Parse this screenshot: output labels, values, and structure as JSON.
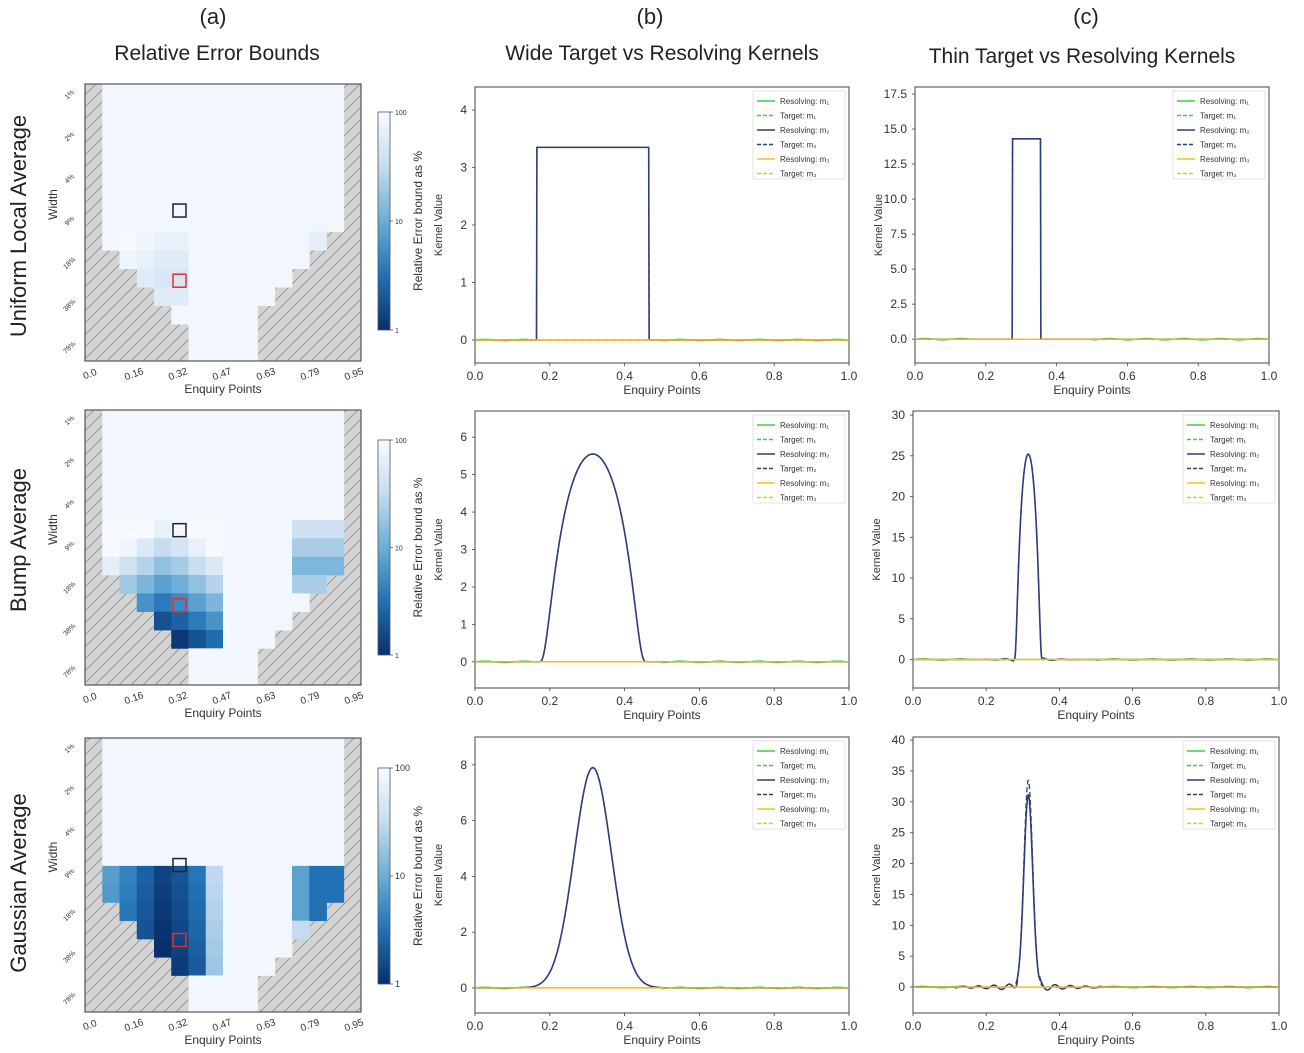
{
  "figure": {
    "column_letters": [
      "(a)",
      "(b)",
      "(c)"
    ],
    "column_titles": [
      "Relative Error Bounds",
      "Wide Target vs Resolving Kernels",
      "Thin Target vs Resolving Kernels"
    ],
    "row_titles": [
      "Uniform Local Average",
      "Bump Average",
      "Gaussian Average"
    ],
    "heatmap": {
      "xlabel": "Enquiry Points",
      "ylabel": "Width",
      "x_ticks": [
        "0.0",
        "0.16",
        "0.32",
        "0.47",
        "0.63",
        "0.79",
        "0.95"
      ],
      "y_ticks": [
        "1%",
        "2%",
        "4%",
        "9%",
        "18%",
        "38%",
        "78%"
      ],
      "colorbar_label": "Relative Error bound as %",
      "colorbar_ticks": [
        "100",
        "10",
        "1"
      ],
      "colors": {
        "hatch_bg": "#d4d4d4",
        "hatch_line": "#9a9a9a",
        "low": "#0b2f6b",
        "high": "#f5f8fd",
        "black_marker": "#222222",
        "red_marker": "#e03030"
      }
    },
    "line_axis": {
      "xlabel": "Enquiry Points",
      "ylabel": "Kernel Value",
      "legend": [
        "Resolving: m₁",
        "Target: m₁",
        "Resolving: m₂",
        "Target: m₂",
        "Resolving: m₃",
        "Target: m₃"
      ],
      "colors": {
        "m1": "#44cc44",
        "m2": "#2e3e78",
        "m3": "#f2c218"
      }
    }
  },
  "chart_data": [
    {
      "type": "heatmap",
      "panel": "a-1",
      "row": "Uniform Local Average",
      "title": "Relative Error Bounds",
      "xlabel": "Enquiry Points",
      "ylabel": "Width",
      "colorbar": {
        "label": "Relative Error bound as %",
        "ticks": [
          100,
          10,
          1
        ],
        "scale": "log"
      },
      "relative_error_band_max_percent": 20
    },
    {
      "type": "heatmap",
      "panel": "a-2",
      "row": "Bump Average",
      "xlabel": "Enquiry Points",
      "ylabel": "Width",
      "colorbar": {
        "label": "Relative Error bound as %",
        "ticks": [
          100,
          10,
          1
        ],
        "scale": "log"
      },
      "relative_error_band_min_percent": 1
    },
    {
      "type": "heatmap",
      "panel": "a-3",
      "row": "Gaussian Average",
      "xlabel": "Enquiry Points",
      "ylabel": "Width",
      "colorbar": {
        "label": "Relative Error bound as %",
        "ticks": [
          100,
          10,
          1
        ],
        "scale": "log"
      },
      "relative_error_band_min_percent": 1
    },
    {
      "type": "line",
      "panel": "b-1",
      "title": "Wide Target vs Resolving Kernels",
      "xlabel": "Enquiry Points",
      "ylabel": "Kernel Value",
      "xlim": [
        0,
        1
      ],
      "ylim": [
        -0.4,
        4.4
      ],
      "y_ticks": [
        0,
        1,
        2,
        3,
        4
      ],
      "target": {
        "shape": "box",
        "left": 0.165,
        "right": 0.465,
        "height": 3.35
      },
      "resolving_overshoot_peak": 3.65
    },
    {
      "type": "line",
      "panel": "c-1",
      "title": "Thin Target vs Resolving Kernels",
      "xlabel": "Enquiry Points",
      "ylabel": "Kernel Value",
      "xlim": [
        0,
        1
      ],
      "ylim": [
        -1.7,
        18.0
      ],
      "y_ticks": [
        0,
        2.5,
        5,
        7.5,
        10,
        12.5,
        15,
        17.5
      ],
      "target": {
        "shape": "box",
        "left": 0.275,
        "right": 0.355,
        "height": 14.3
      },
      "resolving_overshoot_peak": 15.5
    },
    {
      "type": "line",
      "panel": "b-2",
      "xlabel": "Enquiry Points",
      "ylabel": "Kernel Value",
      "xlim": [
        0,
        1
      ],
      "ylim": [
        -0.7,
        6.7
      ],
      "y_ticks": [
        0,
        1,
        2,
        3,
        4,
        5,
        6
      ],
      "target": {
        "shape": "bump",
        "center": 0.315,
        "half_width": 0.15,
        "peak": 5.55
      }
    },
    {
      "type": "line",
      "panel": "c-2",
      "xlabel": "Enquiry Points",
      "ylabel": "Kernel Value",
      "xlim": [
        0,
        1
      ],
      "ylim": [
        -3.5,
        30.5
      ],
      "y_ticks": [
        0,
        5,
        10,
        15,
        20,
        25,
        30
      ],
      "target": {
        "shape": "bump",
        "center": 0.315,
        "half_width": 0.04,
        "peak": 25.2
      }
    },
    {
      "type": "line",
      "panel": "b-3",
      "xlabel": "Enquiry Points",
      "ylabel": "Kernel Value",
      "xlim": [
        0,
        1
      ],
      "ylim": [
        -0.9,
        9.0
      ],
      "y_ticks": [
        0,
        2,
        4,
        6,
        8
      ],
      "target": {
        "shape": "gaussian",
        "center": 0.315,
        "sigma": 0.05,
        "peak": 7.9
      }
    },
    {
      "type": "line",
      "panel": "c-3",
      "xlabel": "Enquiry Points",
      "ylabel": "Kernel Value",
      "xlim": [
        0,
        1
      ],
      "ylim": [
        -4.2,
        40.5
      ],
      "y_ticks": [
        0,
        5,
        10,
        15,
        20,
        25,
        30,
        35,
        40
      ],
      "target": {
        "shape": "gaussian",
        "center": 0.315,
        "sigma": 0.012,
        "peak": 33.5
      }
    }
  ]
}
